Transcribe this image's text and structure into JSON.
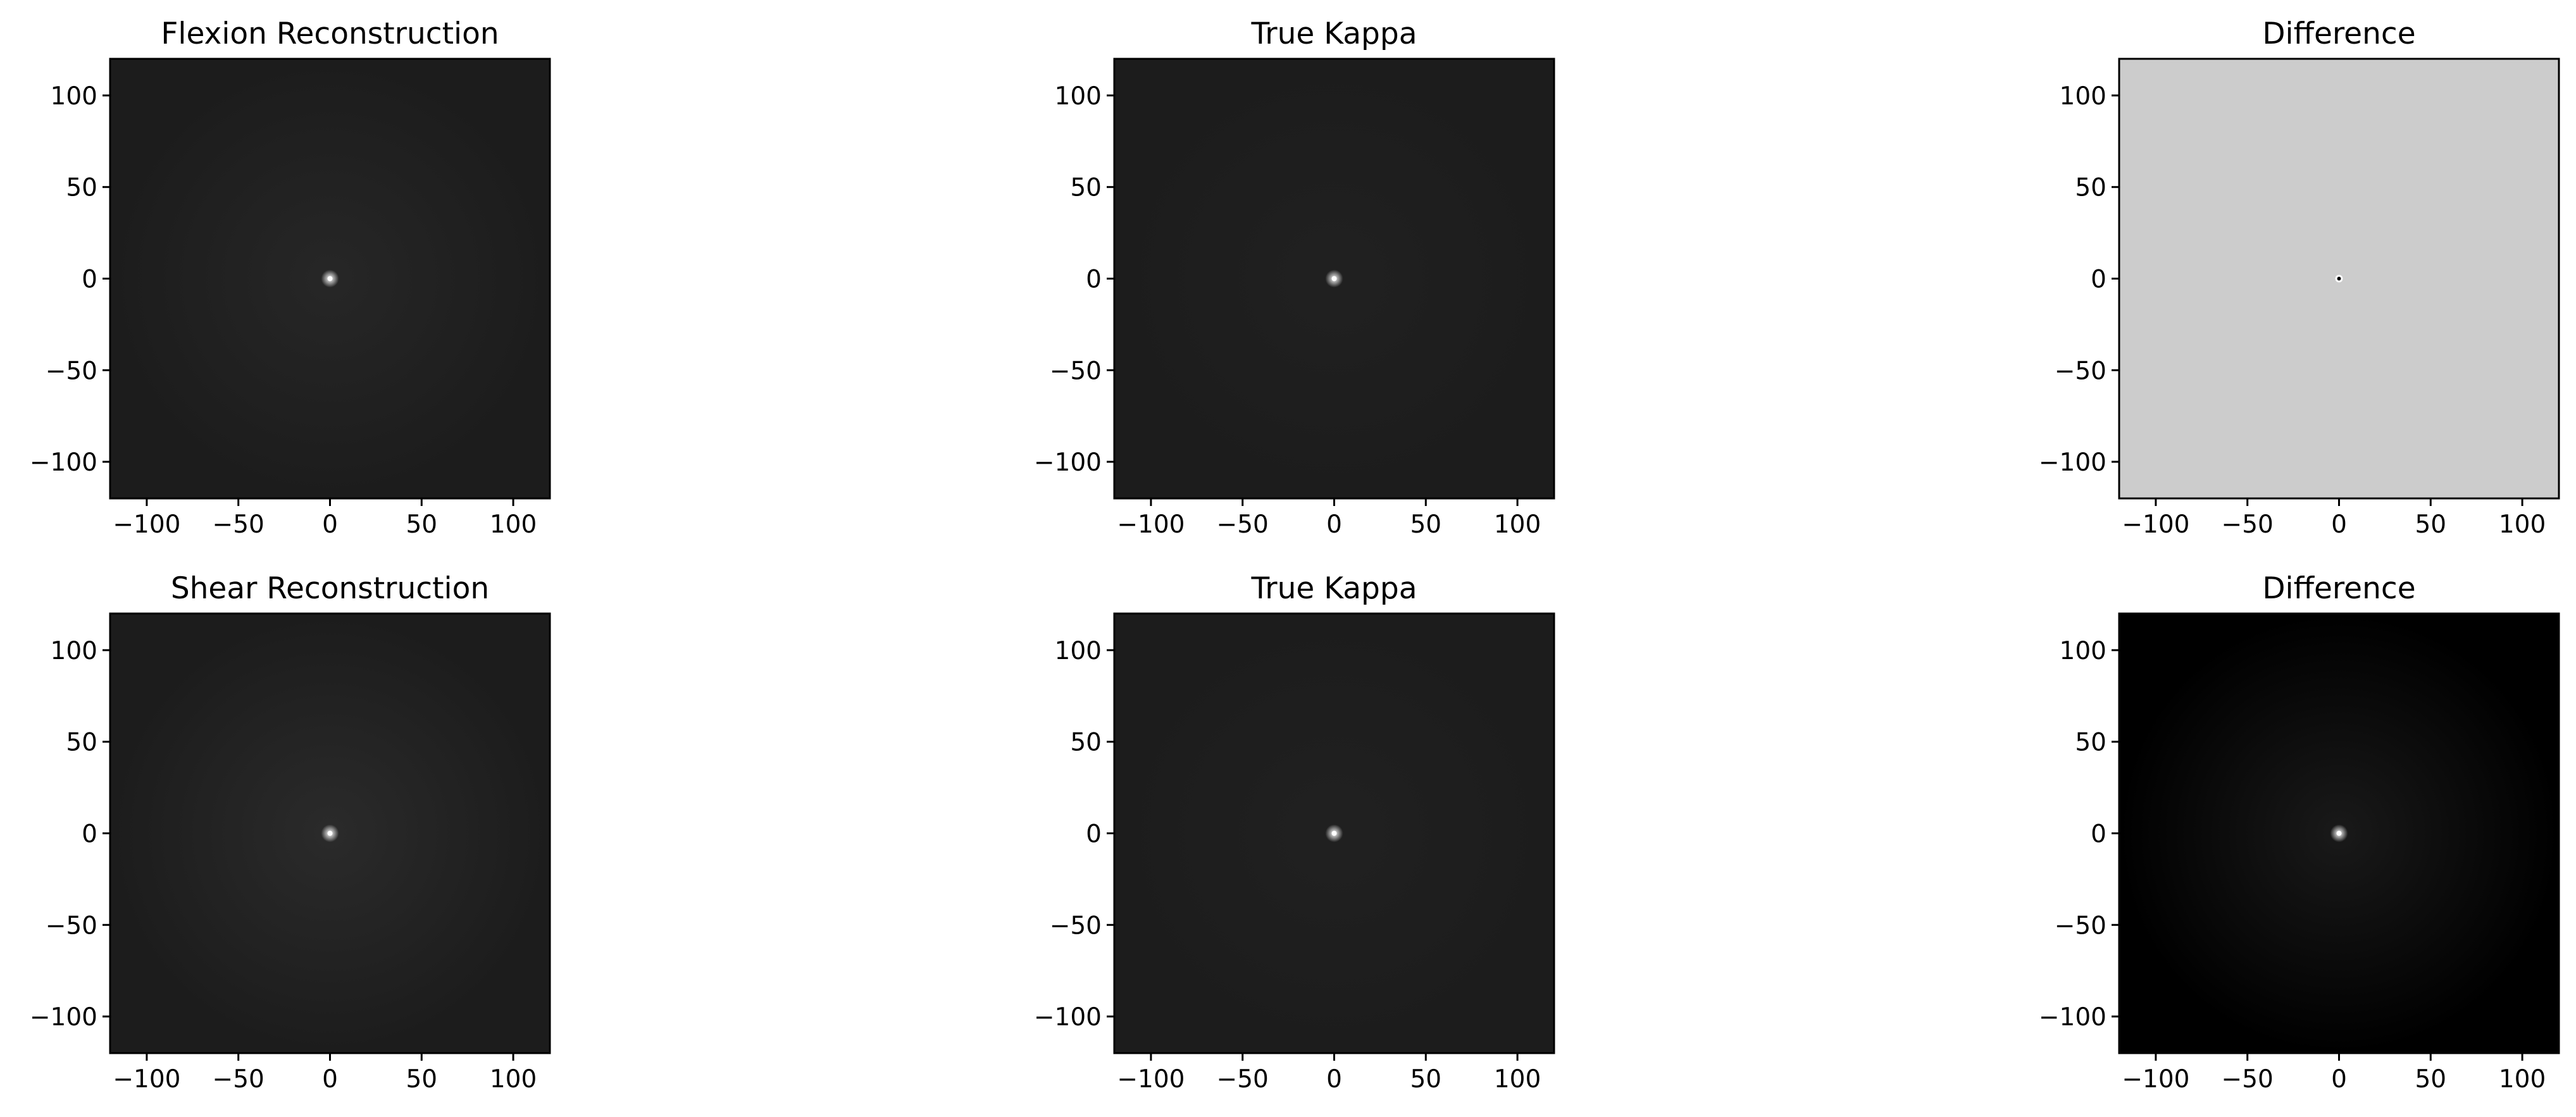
{
  "figure": {
    "background": "#ffffff",
    "panels": [
      {
        "id": "flexion-reconstruction",
        "title": "Flexion Reconstruction",
        "row": 0,
        "col": 0,
        "cmap": "gray",
        "background_color": "#1c1c1c",
        "glow_color": "#3a3a3a",
        "center_color": "#ffffff",
        "center_style": "dot",
        "glow_strength": 0.35
      },
      {
        "id": "true-kappa-top",
        "title": "True Kappa",
        "row": 0,
        "col": 1,
        "cmap": "gray",
        "background_color": "#1c1c1c",
        "glow_color": "#2e2e2e",
        "center_color": "#ffffff",
        "center_style": "dot",
        "glow_strength": 0.25
      },
      {
        "id": "difference-top",
        "title": "Difference",
        "row": 0,
        "col": 2,
        "cmap": "gray",
        "background_color": "#cccccc",
        "glow_color": "#cccccc",
        "center_color": "#000000",
        "center_style": "ring",
        "glow_strength": 0.0
      },
      {
        "id": "shear-reconstruction",
        "title": "Shear Reconstruction",
        "row": 1,
        "col": 0,
        "cmap": "gray",
        "background_color": "#1c1c1c",
        "glow_color": "#3c3c3c",
        "center_color": "#ffffff",
        "center_style": "dot",
        "glow_strength": 0.45
      },
      {
        "id": "true-kappa-bottom",
        "title": "True Kappa",
        "row": 1,
        "col": 1,
        "cmap": "gray",
        "background_color": "#1c1c1c",
        "glow_color": "#2e2e2e",
        "center_color": "#ffffff",
        "center_style": "dot",
        "glow_strength": 0.25
      },
      {
        "id": "difference-bottom",
        "title": "Difference",
        "row": 1,
        "col": 2,
        "cmap": "gray",
        "background_color": "#000000",
        "glow_color": "#2a2a2a",
        "center_color": "#ffffff",
        "center_style": "dot",
        "glow_strength": 0.6
      }
    ]
  },
  "chart_data": {
    "type": "heatmap",
    "layout": "2x3 grid of images",
    "xlim": [
      -120,
      120
    ],
    "ylim": [
      -120,
      120
    ],
    "x_ticks": [
      -100,
      -50,
      0,
      50,
      100
    ],
    "y_ticks": [
      100,
      50,
      0,
      -50,
      -100
    ],
    "x_tick_labels": [
      "−100",
      "−50",
      "0",
      "50",
      "100"
    ],
    "y_tick_labels": [
      "100",
      "50",
      "0",
      "−50",
      "−100"
    ],
    "grid": false,
    "legend": "none",
    "peak_position": [
      0,
      0
    ]
  }
}
